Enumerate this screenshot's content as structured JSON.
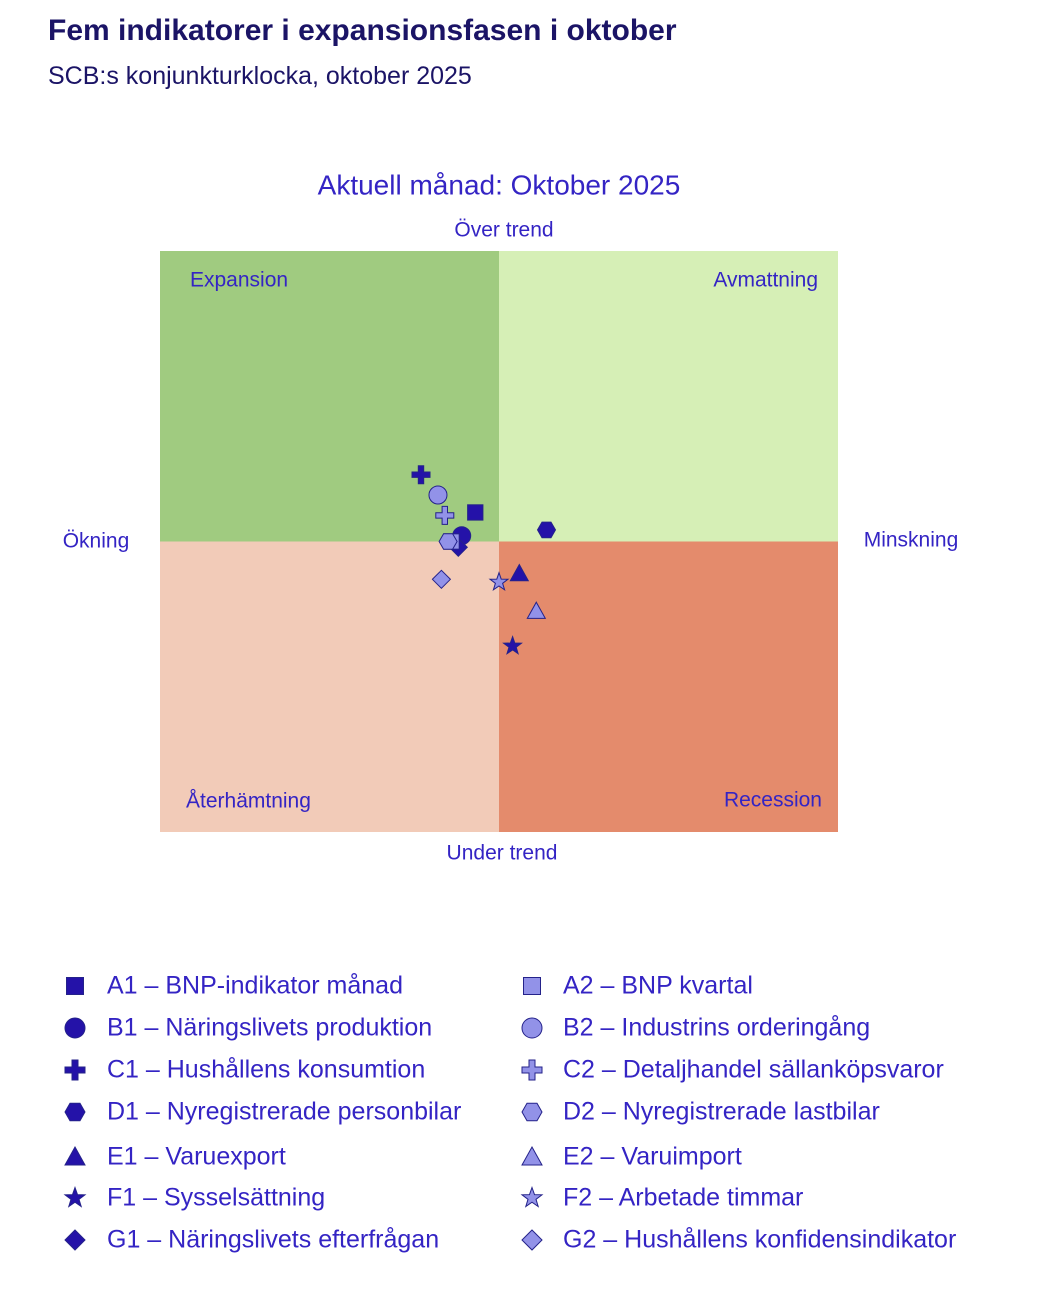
{
  "header": {
    "title": "Fem indikatorer i expansionsfasen i oktober",
    "subtitle": "SCB:s konjunkturklocka, oktober 2025"
  },
  "chart_data": {
    "type": "scatter",
    "title": "Aktuell månad: Oktober 2025",
    "top_label": "Över trend",
    "bottom_label": "Under trend",
    "left_label": "Ökning",
    "right_label": "Minskning",
    "quadrants": {
      "top_left": "Expansion",
      "top_right": "Avmattning",
      "bottom_left": "Återhämtning",
      "bottom_right": "Recession"
    },
    "quadrant_colors": {
      "top_left": "#a0cb80",
      "top_right": "#d6efb6",
      "bottom_left": "#f2cbb8",
      "bottom_right": "#e48b6c"
    },
    "xlim": [
      -1,
      1
    ],
    "ylim": [
      -1,
      1
    ],
    "series": [
      {
        "name": "A1 – BNP-indikator månad",
        "color": "#2412a8",
        "marker": "square",
        "x": [
          -0.07
        ],
        "values": [
          0.1
        ]
      },
      {
        "name": "B1 – Näringslivets produktion",
        "color": "#2412a8",
        "marker": "circle",
        "x": [
          -0.11
        ],
        "values": [
          0.02
        ]
      },
      {
        "name": "C1 – Hushållens konsumtion",
        "color": "#2412a8",
        "marker": "plus",
        "x": [
          -0.23
        ],
        "values": [
          0.23
        ]
      },
      {
        "name": "D1 – Nyregistrerade personbilar",
        "color": "#2412a8",
        "marker": "hexagon",
        "x": [
          0.14
        ],
        "values": [
          0.04
        ]
      },
      {
        "name": "E1 – Varuexport",
        "color": "#2412a8",
        "marker": "triangle",
        "x": [
          0.06
        ],
        "values": [
          -0.11
        ]
      },
      {
        "name": "F1 – Sysselsättning",
        "color": "#2412a8",
        "marker": "star",
        "x": [
          0.04
        ],
        "values": [
          -0.36
        ]
      },
      {
        "name": "G1 – Näringslivets efterfrågan",
        "color": "#2412a8",
        "marker": "diamond",
        "x": [
          -0.12
        ],
        "values": [
          -0.02
        ]
      },
      {
        "name": "A2 – BNP kvartal",
        "color": "#9292e8",
        "marker": "square",
        "x": [
          -0.14
        ],
        "values": [
          0.0
        ]
      },
      {
        "name": "B2 – Industrins orderingång",
        "color": "#9292e8",
        "marker": "circle",
        "x": [
          -0.18
        ],
        "values": [
          0.16
        ]
      },
      {
        "name": "C2 – Detaljhandel sällanköpsvaror",
        "color": "#9292e8",
        "marker": "plus",
        "x": [
          -0.16
        ],
        "values": [
          0.09
        ]
      },
      {
        "name": "D2 – Nyregistrerade lastbilar",
        "color": "#9292e8",
        "marker": "hexagon",
        "x": [
          -0.15
        ],
        "values": [
          0.0
        ]
      },
      {
        "name": "E2 – Varuimport",
        "color": "#9292e8",
        "marker": "triangle",
        "x": [
          0.11
        ],
        "values": [
          -0.24
        ]
      },
      {
        "name": "F2 – Arbetade timmar",
        "color": "#9292e8",
        "marker": "star",
        "x": [
          0.0
        ],
        "values": [
          -0.14
        ]
      },
      {
        "name": "G2 – Hushållens konfidensindikator",
        "color": "#9292e8",
        "marker": "diamond",
        "x": [
          -0.17
        ],
        "values": [
          -0.13
        ]
      }
    ]
  }
}
